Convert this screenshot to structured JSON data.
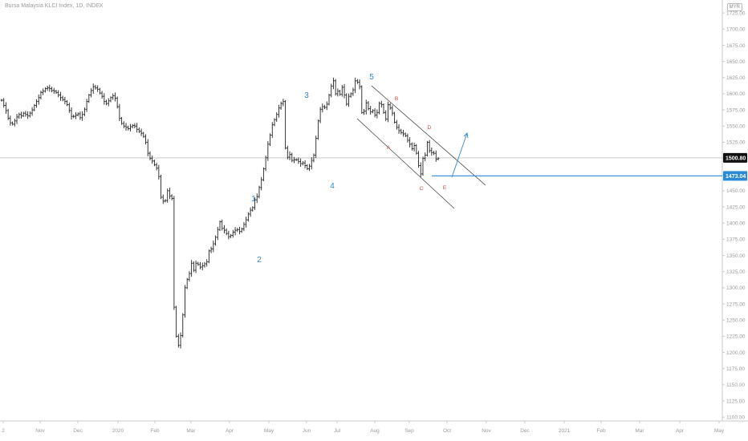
{
  "header": {
    "title": "Bursa Malaysia KLCI Index, 1D, INDEX",
    "currency_badge": "MYR"
  },
  "chart_data": {
    "type": "candlestick-line",
    "title": "Bursa Malaysia KLCI Index, 1D, INDEX",
    "y_ticks": [
      1725,
      1700,
      1675,
      1650,
      1625,
      1600,
      1575,
      1550,
      1525,
      1500,
      1475,
      1450,
      1425,
      1400,
      1375,
      1350,
      1325,
      1300,
      1275,
      1250,
      1225,
      1200,
      1175,
      1150,
      1125,
      1100
    ],
    "y_tick_labels": [
      "1725.00",
      "1700.00",
      "1675.00",
      "1650.00",
      "1625.00",
      "1600.00",
      "1575.00",
      "1550.00",
      "1525.00",
      "1500.00",
      "1475.00",
      "1450.00",
      "1425.00",
      "1400.00",
      "1375.00",
      "1350.00",
      "1325.00",
      "1300.00",
      "1275.00",
      "1250.00",
      "1225.00",
      "1200.00",
      "1175.00",
      "1150.00",
      "1125.00",
      "1100.00"
    ],
    "ylim": [
      1094,
      1745
    ],
    "x_tick_labels": [
      "2",
      "Nov",
      "Dec",
      "2020",
      "Feb",
      "Mar",
      "Apr",
      "May",
      "Jun",
      "Jul",
      "Aug",
      "Sep",
      "Oct",
      "Nov",
      "Dec",
      "2021",
      "Feb",
      "Mar",
      "Apr",
      "May"
    ],
    "last_price": "1500.80",
    "target_price": "1473.04",
    "series": [
      {
        "values": [
          1590,
          1582,
          1574,
          1562,
          1555,
          1553,
          1558,
          1564,
          1568,
          1566,
          1570,
          1568,
          1566,
          1570,
          1575,
          1582,
          1588,
          1594,
          1602,
          1604,
          1608,
          1609,
          1608,
          1605,
          1604,
          1602,
          1598,
          1594,
          1591,
          1588,
          1583,
          1574,
          1565,
          1565,
          1567,
          1569,
          1563,
          1568,
          1576,
          1588,
          1598,
          1605,
          1611,
          1609,
          1607,
          1601,
          1596,
          1588,
          1585,
          1589,
          1594,
          1597,
          1593,
          1580,
          1562,
          1554,
          1550,
          1548,
          1546,
          1549,
          1551,
          1550,
          1545,
          1542,
          1539,
          1534,
          1525,
          1508,
          1500,
          1496,
          1490,
          1485,
          1472,
          1440,
          1434,
          1435,
          1450,
          1442,
          1438,
          1270,
          1225,
          1211,
          1226,
          1258,
          1300,
          1313,
          1322,
          1338,
          1327,
          1338,
          1336,
          1332,
          1334,
          1337,
          1340,
          1357,
          1360,
          1368,
          1378,
          1390,
          1402,
          1392,
          1389,
          1384,
          1379,
          1381,
          1386,
          1389,
          1390,
          1387,
          1391,
          1398,
          1405,
          1414,
          1420,
          1424,
          1436,
          1441,
          1455,
          1467,
          1484,
          1501,
          1522,
          1536,
          1552,
          1560,
          1568,
          1578,
          1585,
          1588,
          1516,
          1502,
          1506,
          1497,
          1498,
          1498,
          1495,
          1492,
          1493,
          1489,
          1484,
          1488,
          1497,
          1505,
          1531,
          1558,
          1576,
          1580,
          1579,
          1584,
          1598,
          1612,
          1620,
          1600,
          1604,
          1599,
          1610,
          1598,
          1584,
          1596,
          1600,
          1606,
          1620,
          1618,
          1611,
          1571,
          1573,
          1586,
          1577,
          1572,
          1574,
          1567,
          1571,
          1585,
          1583,
          1571,
          1561,
          1583,
          1578,
          1570,
          1556,
          1548,
          1543,
          1540,
          1538,
          1535,
          1528,
          1522,
          1515,
          1520,
          1508,
          1489,
          1476,
          1500,
          1505,
          1525,
          1512,
          1509,
          1508,
          1499,
          1500
        ]
      }
    ],
    "annotations": {
      "elliott_waves": [
        "1",
        "2",
        "3",
        "4",
        "5"
      ],
      "corrective_waves": [
        "A",
        "B",
        "C",
        "D",
        "E"
      ]
    }
  }
}
